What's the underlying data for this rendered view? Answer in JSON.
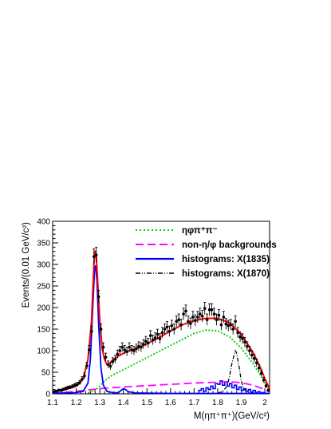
{
  "chart_data": {
    "type": "line",
    "title": "",
    "xlabel": "M(ηπ⁺π⁺)(GeV/c²)",
    "ylabel": "Events/(0.01 GeV/c²)",
    "xlim": [
      1.1,
      2.02
    ],
    "ylim": [
      0,
      400
    ],
    "x_ticks": [
      1.1,
      1.2,
      1.3,
      1.4,
      1.5,
      1.6,
      1.7,
      1.8,
      1.9,
      2.0
    ],
    "x_tick_labels": [
      "1.1",
      "1.2",
      "1.3",
      "1.4",
      "1.5",
      "1.6",
      "1.7",
      "1.8",
      "1.9",
      "2"
    ],
    "y_ticks": [
      0,
      50,
      100,
      150,
      200,
      250,
      300,
      350,
      400
    ],
    "y_tick_labels": [
      "0",
      "50",
      "100",
      "150",
      "200",
      "250",
      "300",
      "350",
      "400"
    ],
    "legend": {
      "position": "top-right",
      "entries": [
        {
          "label": "ηφπ⁺π⁻",
          "color": "#00cc00",
          "dash": "dotted"
        },
        {
          "label": "non-η/φ backgrounds",
          "color": "#ff00ff",
          "dash": "dashed"
        },
        {
          "label": "histograms: X(1835)",
          "color": "#0000ff",
          "dash": "solid"
        },
        {
          "label": "histograms: X(1870)",
          "color": "#000000",
          "dash": "dash-dot"
        }
      ]
    },
    "series": [
      {
        "role": "data points with error bars",
        "color": "#000000",
        "points": [
          [
            1.105,
            5
          ],
          [
            1.115,
            6
          ],
          [
            1.125,
            8
          ],
          [
            1.135,
            8
          ],
          [
            1.145,
            10
          ],
          [
            1.155,
            12
          ],
          [
            1.165,
            14
          ],
          [
            1.175,
            15
          ],
          [
            1.185,
            17
          ],
          [
            1.195,
            20
          ],
          [
            1.205,
            22
          ],
          [
            1.215,
            26
          ],
          [
            1.225,
            34
          ],
          [
            1.235,
            42
          ],
          [
            1.245,
            65
          ],
          [
            1.255,
            102
          ],
          [
            1.265,
            145
          ],
          [
            1.275,
            318
          ],
          [
            1.285,
            322
          ],
          [
            1.295,
            225
          ],
          [
            1.305,
            150
          ],
          [
            1.315,
            108
          ],
          [
            1.325,
            85
          ],
          [
            1.335,
            68
          ],
          [
            1.345,
            64
          ],
          [
            1.355,
            75
          ],
          [
            1.365,
            80
          ],
          [
            1.375,
            92
          ],
          [
            1.385,
            100
          ],
          [
            1.395,
            108
          ],
          [
            1.405,
            102
          ],
          [
            1.415,
            98
          ],
          [
            1.425,
            108
          ],
          [
            1.435,
            102
          ],
          [
            1.445,
            100
          ],
          [
            1.455,
            105
          ],
          [
            1.465,
            110
          ],
          [
            1.475,
            108
          ],
          [
            1.485,
            115
          ],
          [
            1.495,
            122
          ],
          [
            1.505,
            118
          ],
          [
            1.515,
            135
          ],
          [
            1.525,
            125
          ],
          [
            1.535,
            130
          ],
          [
            1.545,
            138
          ],
          [
            1.555,
            128
          ],
          [
            1.565,
            142
          ],
          [
            1.575,
            150
          ],
          [
            1.585,
            155
          ],
          [
            1.595,
            145
          ],
          [
            1.605,
            158
          ],
          [
            1.615,
            150
          ],
          [
            1.625,
            168
          ],
          [
            1.635,
            172
          ],
          [
            1.645,
            160
          ],
          [
            1.655,
            185
          ],
          [
            1.665,
            192
          ],
          [
            1.675,
            168
          ],
          [
            1.685,
            163
          ],
          [
            1.695,
            178
          ],
          [
            1.705,
            170
          ],
          [
            1.715,
            178
          ],
          [
            1.725,
            185
          ],
          [
            1.735,
            180
          ],
          [
            1.745,
            198
          ],
          [
            1.755,
            172
          ],
          [
            1.765,
            195
          ],
          [
            1.775,
            195
          ],
          [
            1.785,
            185
          ],
          [
            1.795,
            172
          ],
          [
            1.805,
            182
          ],
          [
            1.815,
            160
          ],
          [
            1.825,
            178
          ],
          [
            1.835,
            162
          ],
          [
            1.845,
            158
          ],
          [
            1.855,
            160
          ],
          [
            1.865,
            150
          ],
          [
            1.875,
            168
          ],
          [
            1.885,
            142
          ],
          [
            1.895,
            132
          ],
          [
            1.905,
            128
          ],
          [
            1.915,
            120
          ],
          [
            1.925,
            110
          ],
          [
            1.935,
            100
          ],
          [
            1.945,
            90
          ],
          [
            1.955,
            82
          ],
          [
            1.965,
            72
          ],
          [
            1.975,
            60
          ],
          [
            1.985,
            48
          ],
          [
            1.995,
            32
          ],
          [
            2.005,
            18
          ],
          [
            2.015,
            8
          ]
        ]
      },
      {
        "role": "total fit",
        "color": "#ff0000",
        "points": [
          [
            1.1,
            4
          ],
          [
            1.15,
            9
          ],
          [
            1.2,
            18
          ],
          [
            1.23,
            35
          ],
          [
            1.25,
            80
          ],
          [
            1.265,
            170
          ],
          [
            1.275,
            300
          ],
          [
            1.28,
            332
          ],
          [
            1.285,
            320
          ],
          [
            1.29,
            270
          ],
          [
            1.3,
            170
          ],
          [
            1.31,
            105
          ],
          [
            1.32,
            80
          ],
          [
            1.33,
            68
          ],
          [
            1.34,
            70
          ],
          [
            1.35,
            76
          ],
          [
            1.38,
            88
          ],
          [
            1.41,
            97
          ],
          [
            1.45,
            104
          ],
          [
            1.5,
            116
          ],
          [
            1.55,
            130
          ],
          [
            1.6,
            146
          ],
          [
            1.65,
            160
          ],
          [
            1.7,
            170
          ],
          [
            1.75,
            175
          ],
          [
            1.8,
            175
          ],
          [
            1.85,
            165
          ],
          [
            1.9,
            138
          ],
          [
            1.95,
            96
          ],
          [
            1.98,
            62
          ],
          [
            2.0,
            35
          ],
          [
            2.02,
            12
          ]
        ]
      },
      {
        "role": "eta phi pi pi component",
        "color": "#00cc00",
        "points": [
          [
            1.25,
            2
          ],
          [
            1.28,
            8
          ],
          [
            1.3,
            18
          ],
          [
            1.32,
            30
          ],
          [
            1.35,
            42
          ],
          [
            1.4,
            56
          ],
          [
            1.45,
            70
          ],
          [
            1.5,
            84
          ],
          [
            1.55,
            98
          ],
          [
            1.6,
            112
          ],
          [
            1.65,
            126
          ],
          [
            1.7,
            140
          ],
          [
            1.75,
            148
          ],
          [
            1.8,
            146
          ],
          [
            1.85,
            132
          ],
          [
            1.9,
            106
          ],
          [
            1.95,
            70
          ],
          [
            1.98,
            44
          ],
          [
            2.0,
            26
          ],
          [
            2.02,
            8
          ]
        ]
      },
      {
        "role": "non-eta/phi background",
        "color": "#ff00ff",
        "points": [
          [
            1.1,
            1
          ],
          [
            1.15,
            3
          ],
          [
            1.2,
            6
          ],
          [
            1.25,
            9
          ],
          [
            1.3,
            12
          ],
          [
            1.35,
            14
          ],
          [
            1.4,
            16
          ],
          [
            1.5,
            19
          ],
          [
            1.6,
            22
          ],
          [
            1.7,
            25
          ],
          [
            1.8,
            27
          ],
          [
            1.85,
            28
          ],
          [
            1.9,
            26
          ],
          [
            1.95,
            20
          ],
          [
            2.0,
            10
          ],
          [
            2.02,
            4
          ]
        ]
      },
      {
        "role": "X(1835)-like peak curve",
        "color": "#0000ff",
        "points": [
          [
            1.1,
            1
          ],
          [
            1.2,
            3
          ],
          [
            1.23,
            6
          ],
          [
            1.25,
            25
          ],
          [
            1.26,
            80
          ],
          [
            1.27,
            200
          ],
          [
            1.278,
            290
          ],
          [
            1.282,
            298
          ],
          [
            1.288,
            260
          ],
          [
            1.295,
            160
          ],
          [
            1.305,
            60
          ],
          [
            1.315,
            20
          ],
          [
            1.33,
            6
          ],
          [
            1.36,
            2
          ],
          [
            1.38,
            3
          ],
          [
            1.39,
            8
          ],
          [
            1.4,
            12
          ],
          [
            1.41,
            10
          ],
          [
            1.42,
            5
          ],
          [
            1.45,
            2
          ],
          [
            1.6,
            1
          ],
          [
            2.02,
            1
          ]
        ]
      },
      {
        "role": "X(1835) histogram",
        "color": "#0000ff",
        "bins": [
          [
            1.72,
            8
          ],
          [
            1.73,
            12
          ],
          [
            1.74,
            6
          ],
          [
            1.75,
            14
          ],
          [
            1.76,
            10
          ],
          [
            1.77,
            18
          ],
          [
            1.78,
            12
          ],
          [
            1.79,
            24
          ],
          [
            1.8,
            22
          ],
          [
            1.81,
            30
          ],
          [
            1.82,
            20
          ],
          [
            1.83,
            28
          ],
          [
            1.84,
            18
          ],
          [
            1.85,
            24
          ],
          [
            1.86,
            14
          ],
          [
            1.87,
            20
          ],
          [
            1.88,
            10
          ],
          [
            1.89,
            16
          ],
          [
            1.9,
            8
          ],
          [
            1.91,
            12
          ],
          [
            1.92,
            6
          ],
          [
            1.93,
            10
          ],
          [
            1.94,
            4
          ],
          [
            1.95,
            8
          ],
          [
            1.96,
            3
          ],
          [
            1.97,
            5
          ],
          [
            1.98,
            2
          ],
          [
            1.99,
            3
          ]
        ]
      },
      {
        "role": "X(1870) histogram",
        "color": "#000000",
        "points": [
          [
            1.8,
            2
          ],
          [
            1.82,
            5
          ],
          [
            1.84,
            18
          ],
          [
            1.85,
            40
          ],
          [
            1.86,
            70
          ],
          [
            1.87,
            92
          ],
          [
            1.875,
            100
          ],
          [
            1.88,
            95
          ],
          [
            1.89,
            65
          ],
          [
            1.9,
            30
          ],
          [
            1.91,
            12
          ],
          [
            1.93,
            3
          ],
          [
            1.96,
            1
          ]
        ]
      }
    ]
  }
}
